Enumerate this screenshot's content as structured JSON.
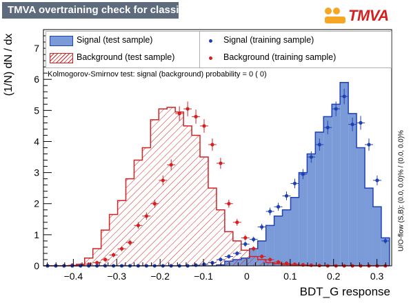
{
  "title": "TMVA overtraining check for classifier: BDT_G",
  "logo": "TMVA",
  "colors": {
    "signal_fill": "#7b9bd8",
    "signal_line": "#1f3fb5",
    "background_line": "#d42020",
    "title_bg": "#5d6b7d"
  },
  "ks_text": "Kolmogorov-Smirnov test: signal (background) probability =     0 (    0)",
  "overflow_text": "U/O-flow (S,B): (0.0, 0.0)% / (0.0, 0.0)%",
  "legend": {
    "signal_test": "Signal (test sample)",
    "background_test": "Background (test sample)",
    "signal_train": "Signal (training sample)",
    "background_train": "Background (training sample)"
  },
  "chart_data": {
    "type": "histogram",
    "xlabel": "BDT_G response",
    "ylabel": "(1/N) dN / dx",
    "xlim": [
      -0.469,
      0.334
    ],
    "ylim": [
      0,
      7.6
    ],
    "x_ticks": [
      -0.4,
      -0.3,
      -0.2,
      -0.1,
      0,
      0.1,
      0.2,
      0.3
    ],
    "x_tick_labels": [
      "−0.4",
      "−0.3",
      "−0.2",
      "−0.1",
      "0",
      "0.1",
      "0.2",
      "0.3"
    ],
    "y_ticks": [
      0,
      1,
      2,
      3,
      4,
      5,
      6,
      7
    ],
    "y_tick_labels": [
      "0",
      "1",
      "2",
      "3",
      "4",
      "5",
      "6",
      "7"
    ],
    "bin_edges": [
      -0.469,
      -0.45,
      -0.431,
      -0.412,
      -0.393,
      -0.374,
      -0.355,
      -0.336,
      -0.317,
      -0.298,
      -0.279,
      -0.26,
      -0.241,
      -0.222,
      -0.203,
      -0.184,
      -0.165,
      -0.146,
      -0.127,
      -0.108,
      -0.089,
      -0.07,
      -0.051,
      -0.032,
      -0.013,
      0.006,
      0.025,
      0.044,
      0.063,
      0.082,
      0.101,
      0.12,
      0.139,
      0.158,
      0.177,
      0.196,
      0.215,
      0.234,
      0.253,
      0.272,
      0.291,
      0.31,
      0.329
    ],
    "signal_test": [
      0,
      0,
      0,
      0,
      0,
      0,
      0,
      0,
      0,
      0,
      0,
      0,
      0,
      0,
      0,
      0,
      0,
      0,
      0,
      0,
      0,
      0.03,
      0.15,
      0.2,
      0.25,
      0.55,
      0.8,
      1.3,
      1.6,
      1.8,
      2.2,
      3,
      3.6,
      4.3,
      4.8,
      5.2,
      5.9,
      4.9,
      3.8,
      2.5,
      1.9,
      0.9
    ],
    "background_test": [
      0,
      0,
      0,
      0,
      0.05,
      0.25,
      0.55,
      1.15,
      1.65,
      2.1,
      2.8,
      3.4,
      3.8,
      4.7,
      5.05,
      5.1,
      4.95,
      4.5,
      4.2,
      3.5,
      2.5,
      1.8,
      1.1,
      0.8,
      0.5,
      0.3,
      0.2,
      0.1,
      0.07,
      0.04,
      0.02,
      0.01,
      0,
      0,
      0,
      0,
      0,
      0,
      0,
      0,
      0,
      0
    ],
    "signal_train": [
      0,
      0,
      0,
      0,
      0,
      0,
      0,
      0,
      0,
      0,
      0,
      0,
      0,
      0,
      0,
      0,
      0,
      0,
      0.02,
      0.05,
      0.1,
      0.2,
      0.3,
      0.4,
      0.7,
      0.85,
      1.25,
      1.75,
      1.9,
      2.25,
      2.65,
      2.95,
      3.5,
      3.9,
      4.45,
      5.05,
      5.45,
      4.55,
      4.6,
      3.9,
      2.75,
      0.8
    ],
    "background_train": [
      0,
      0,
      0,
      0.02,
      0.02,
      0.05,
      0.1,
      0.2,
      0.35,
      0.55,
      0.75,
      1.3,
      1.6,
      2.0,
      2.75,
      3.25,
      4.9,
      5.05,
      4.8,
      4.5,
      3.9,
      3.3,
      2.0,
      1.4,
      0.9,
      0.55,
      0.3,
      0.2,
      0.12,
      0.08,
      0.05,
      0.03,
      0.02,
      0.01,
      0,
      0,
      0,
      0,
      0,
      0,
      0,
      0
    ]
  }
}
